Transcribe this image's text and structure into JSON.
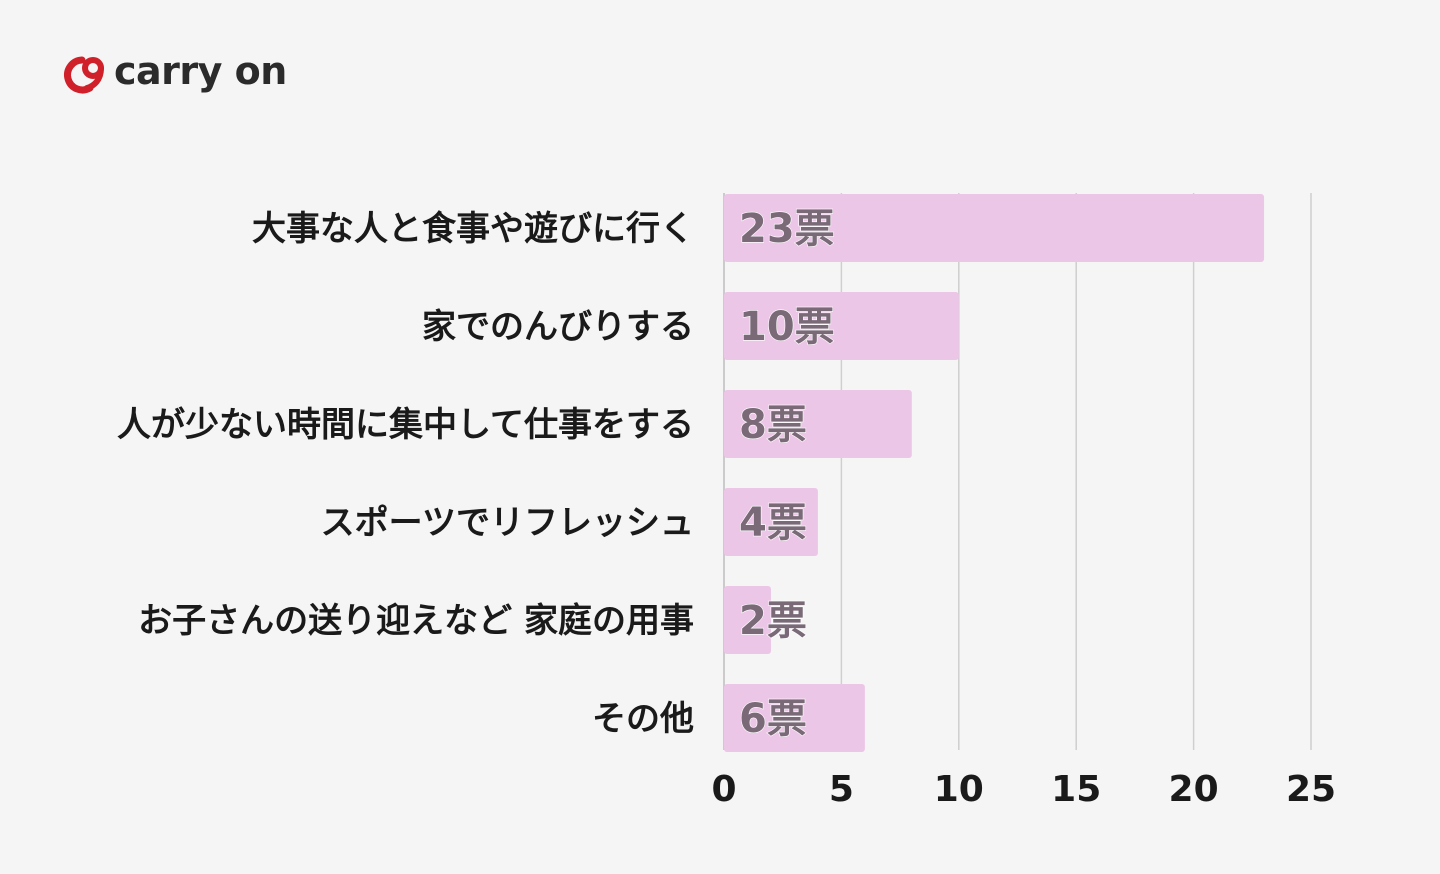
{
  "brand": {
    "name": "carry on",
    "color": "#d0202a"
  },
  "chart_data": {
    "type": "bar",
    "orientation": "horizontal",
    "categories": [
      "大事な人と食事や遊びに行く",
      "家でのんびりする",
      "人が少ない時間に集中して仕事をする",
      "スポーツでリフレッシュ",
      "お子さんの送り迎えなど 家庭の用事",
      "その他"
    ],
    "values": [
      23,
      10,
      8,
      4,
      2,
      6
    ],
    "value_labels": [
      "23票",
      "10票",
      "8票",
      "4票",
      "2票",
      "6票"
    ],
    "xlim": [
      0,
      25
    ],
    "xticks": [
      "0",
      "5",
      "10",
      "15",
      "20",
      "25"
    ],
    "grid": "vertical",
    "bar_color": "#ecc6e6",
    "label_color": "#7a6a78"
  }
}
